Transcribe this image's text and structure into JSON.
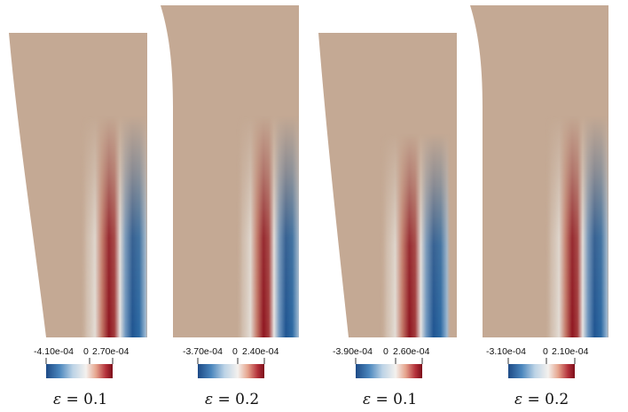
{
  "panels": [
    {
      "min_label": "-4.10e-04",
      "zero_label": "0",
      "max_label": "2.70e-04",
      "caption_symbol": "ε",
      "caption_eq": " = 0.1"
    },
    {
      "min_label": "-3.70e-04",
      "zero_label": "0",
      "max_label": "2.40e-04",
      "caption_symbol": "ε",
      "caption_eq": " = 0.2"
    },
    {
      "min_label": "-3.90e-04",
      "zero_label": "0",
      "max_label": "2.60e-04",
      "caption_symbol": "ε",
      "caption_eq": " = 0.1"
    },
    {
      "min_label": "-3.10e-04",
      "zero_label": "0",
      "max_label": "2.10e-04",
      "caption_symbol": "ε",
      "caption_eq": " = 0.2"
    }
  ],
  "colors": {
    "background_field": "#c4a994",
    "negative": "#1d4f8a",
    "neutral": "#e8e8e8",
    "positive": "#8b0f1c"
  }
}
